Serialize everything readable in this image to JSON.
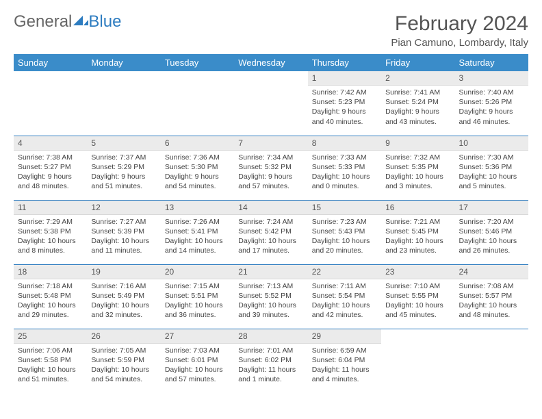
{
  "logo": {
    "general": "General",
    "blue": "Blue"
  },
  "header": {
    "month_title": "February 2024",
    "location": "Pian Camuno, Lombardy, Italy"
  },
  "colors": {
    "header_bg": "#3a8cc9",
    "rule": "#2d7cc0",
    "daynum_bg": "#ebebeb"
  },
  "weekdays": [
    "Sunday",
    "Monday",
    "Tuesday",
    "Wednesday",
    "Thursday",
    "Friday",
    "Saturday"
  ],
  "weeks": [
    [
      null,
      null,
      null,
      null,
      {
        "n": "1",
        "sunrise": "Sunrise: 7:42 AM",
        "sunset": "Sunset: 5:23 PM",
        "daylight": "Daylight: 9 hours and 40 minutes."
      },
      {
        "n": "2",
        "sunrise": "Sunrise: 7:41 AM",
        "sunset": "Sunset: 5:24 PM",
        "daylight": "Daylight: 9 hours and 43 minutes."
      },
      {
        "n": "3",
        "sunrise": "Sunrise: 7:40 AM",
        "sunset": "Sunset: 5:26 PM",
        "daylight": "Daylight: 9 hours and 46 minutes."
      }
    ],
    [
      {
        "n": "4",
        "sunrise": "Sunrise: 7:38 AM",
        "sunset": "Sunset: 5:27 PM",
        "daylight": "Daylight: 9 hours and 48 minutes."
      },
      {
        "n": "5",
        "sunrise": "Sunrise: 7:37 AM",
        "sunset": "Sunset: 5:29 PM",
        "daylight": "Daylight: 9 hours and 51 minutes."
      },
      {
        "n": "6",
        "sunrise": "Sunrise: 7:36 AM",
        "sunset": "Sunset: 5:30 PM",
        "daylight": "Daylight: 9 hours and 54 minutes."
      },
      {
        "n": "7",
        "sunrise": "Sunrise: 7:34 AM",
        "sunset": "Sunset: 5:32 PM",
        "daylight": "Daylight: 9 hours and 57 minutes."
      },
      {
        "n": "8",
        "sunrise": "Sunrise: 7:33 AM",
        "sunset": "Sunset: 5:33 PM",
        "daylight": "Daylight: 10 hours and 0 minutes."
      },
      {
        "n": "9",
        "sunrise": "Sunrise: 7:32 AM",
        "sunset": "Sunset: 5:35 PM",
        "daylight": "Daylight: 10 hours and 3 minutes."
      },
      {
        "n": "10",
        "sunrise": "Sunrise: 7:30 AM",
        "sunset": "Sunset: 5:36 PM",
        "daylight": "Daylight: 10 hours and 5 minutes."
      }
    ],
    [
      {
        "n": "11",
        "sunrise": "Sunrise: 7:29 AM",
        "sunset": "Sunset: 5:38 PM",
        "daylight": "Daylight: 10 hours and 8 minutes."
      },
      {
        "n": "12",
        "sunrise": "Sunrise: 7:27 AM",
        "sunset": "Sunset: 5:39 PM",
        "daylight": "Daylight: 10 hours and 11 minutes."
      },
      {
        "n": "13",
        "sunrise": "Sunrise: 7:26 AM",
        "sunset": "Sunset: 5:41 PM",
        "daylight": "Daylight: 10 hours and 14 minutes."
      },
      {
        "n": "14",
        "sunrise": "Sunrise: 7:24 AM",
        "sunset": "Sunset: 5:42 PM",
        "daylight": "Daylight: 10 hours and 17 minutes."
      },
      {
        "n": "15",
        "sunrise": "Sunrise: 7:23 AM",
        "sunset": "Sunset: 5:43 PM",
        "daylight": "Daylight: 10 hours and 20 minutes."
      },
      {
        "n": "16",
        "sunrise": "Sunrise: 7:21 AM",
        "sunset": "Sunset: 5:45 PM",
        "daylight": "Daylight: 10 hours and 23 minutes."
      },
      {
        "n": "17",
        "sunrise": "Sunrise: 7:20 AM",
        "sunset": "Sunset: 5:46 PM",
        "daylight": "Daylight: 10 hours and 26 minutes."
      }
    ],
    [
      {
        "n": "18",
        "sunrise": "Sunrise: 7:18 AM",
        "sunset": "Sunset: 5:48 PM",
        "daylight": "Daylight: 10 hours and 29 minutes."
      },
      {
        "n": "19",
        "sunrise": "Sunrise: 7:16 AM",
        "sunset": "Sunset: 5:49 PM",
        "daylight": "Daylight: 10 hours and 32 minutes."
      },
      {
        "n": "20",
        "sunrise": "Sunrise: 7:15 AM",
        "sunset": "Sunset: 5:51 PM",
        "daylight": "Daylight: 10 hours and 36 minutes."
      },
      {
        "n": "21",
        "sunrise": "Sunrise: 7:13 AM",
        "sunset": "Sunset: 5:52 PM",
        "daylight": "Daylight: 10 hours and 39 minutes."
      },
      {
        "n": "22",
        "sunrise": "Sunrise: 7:11 AM",
        "sunset": "Sunset: 5:54 PM",
        "daylight": "Daylight: 10 hours and 42 minutes."
      },
      {
        "n": "23",
        "sunrise": "Sunrise: 7:10 AM",
        "sunset": "Sunset: 5:55 PM",
        "daylight": "Daylight: 10 hours and 45 minutes."
      },
      {
        "n": "24",
        "sunrise": "Sunrise: 7:08 AM",
        "sunset": "Sunset: 5:57 PM",
        "daylight": "Daylight: 10 hours and 48 minutes."
      }
    ],
    [
      {
        "n": "25",
        "sunrise": "Sunrise: 7:06 AM",
        "sunset": "Sunset: 5:58 PM",
        "daylight": "Daylight: 10 hours and 51 minutes."
      },
      {
        "n": "26",
        "sunrise": "Sunrise: 7:05 AM",
        "sunset": "Sunset: 5:59 PM",
        "daylight": "Daylight: 10 hours and 54 minutes."
      },
      {
        "n": "27",
        "sunrise": "Sunrise: 7:03 AM",
        "sunset": "Sunset: 6:01 PM",
        "daylight": "Daylight: 10 hours and 57 minutes."
      },
      {
        "n": "28",
        "sunrise": "Sunrise: 7:01 AM",
        "sunset": "Sunset: 6:02 PM",
        "daylight": "Daylight: 11 hours and 1 minute."
      },
      {
        "n": "29",
        "sunrise": "Sunrise: 6:59 AM",
        "sunset": "Sunset: 6:04 PM",
        "daylight": "Daylight: 11 hours and 4 minutes."
      },
      null,
      null
    ]
  ]
}
